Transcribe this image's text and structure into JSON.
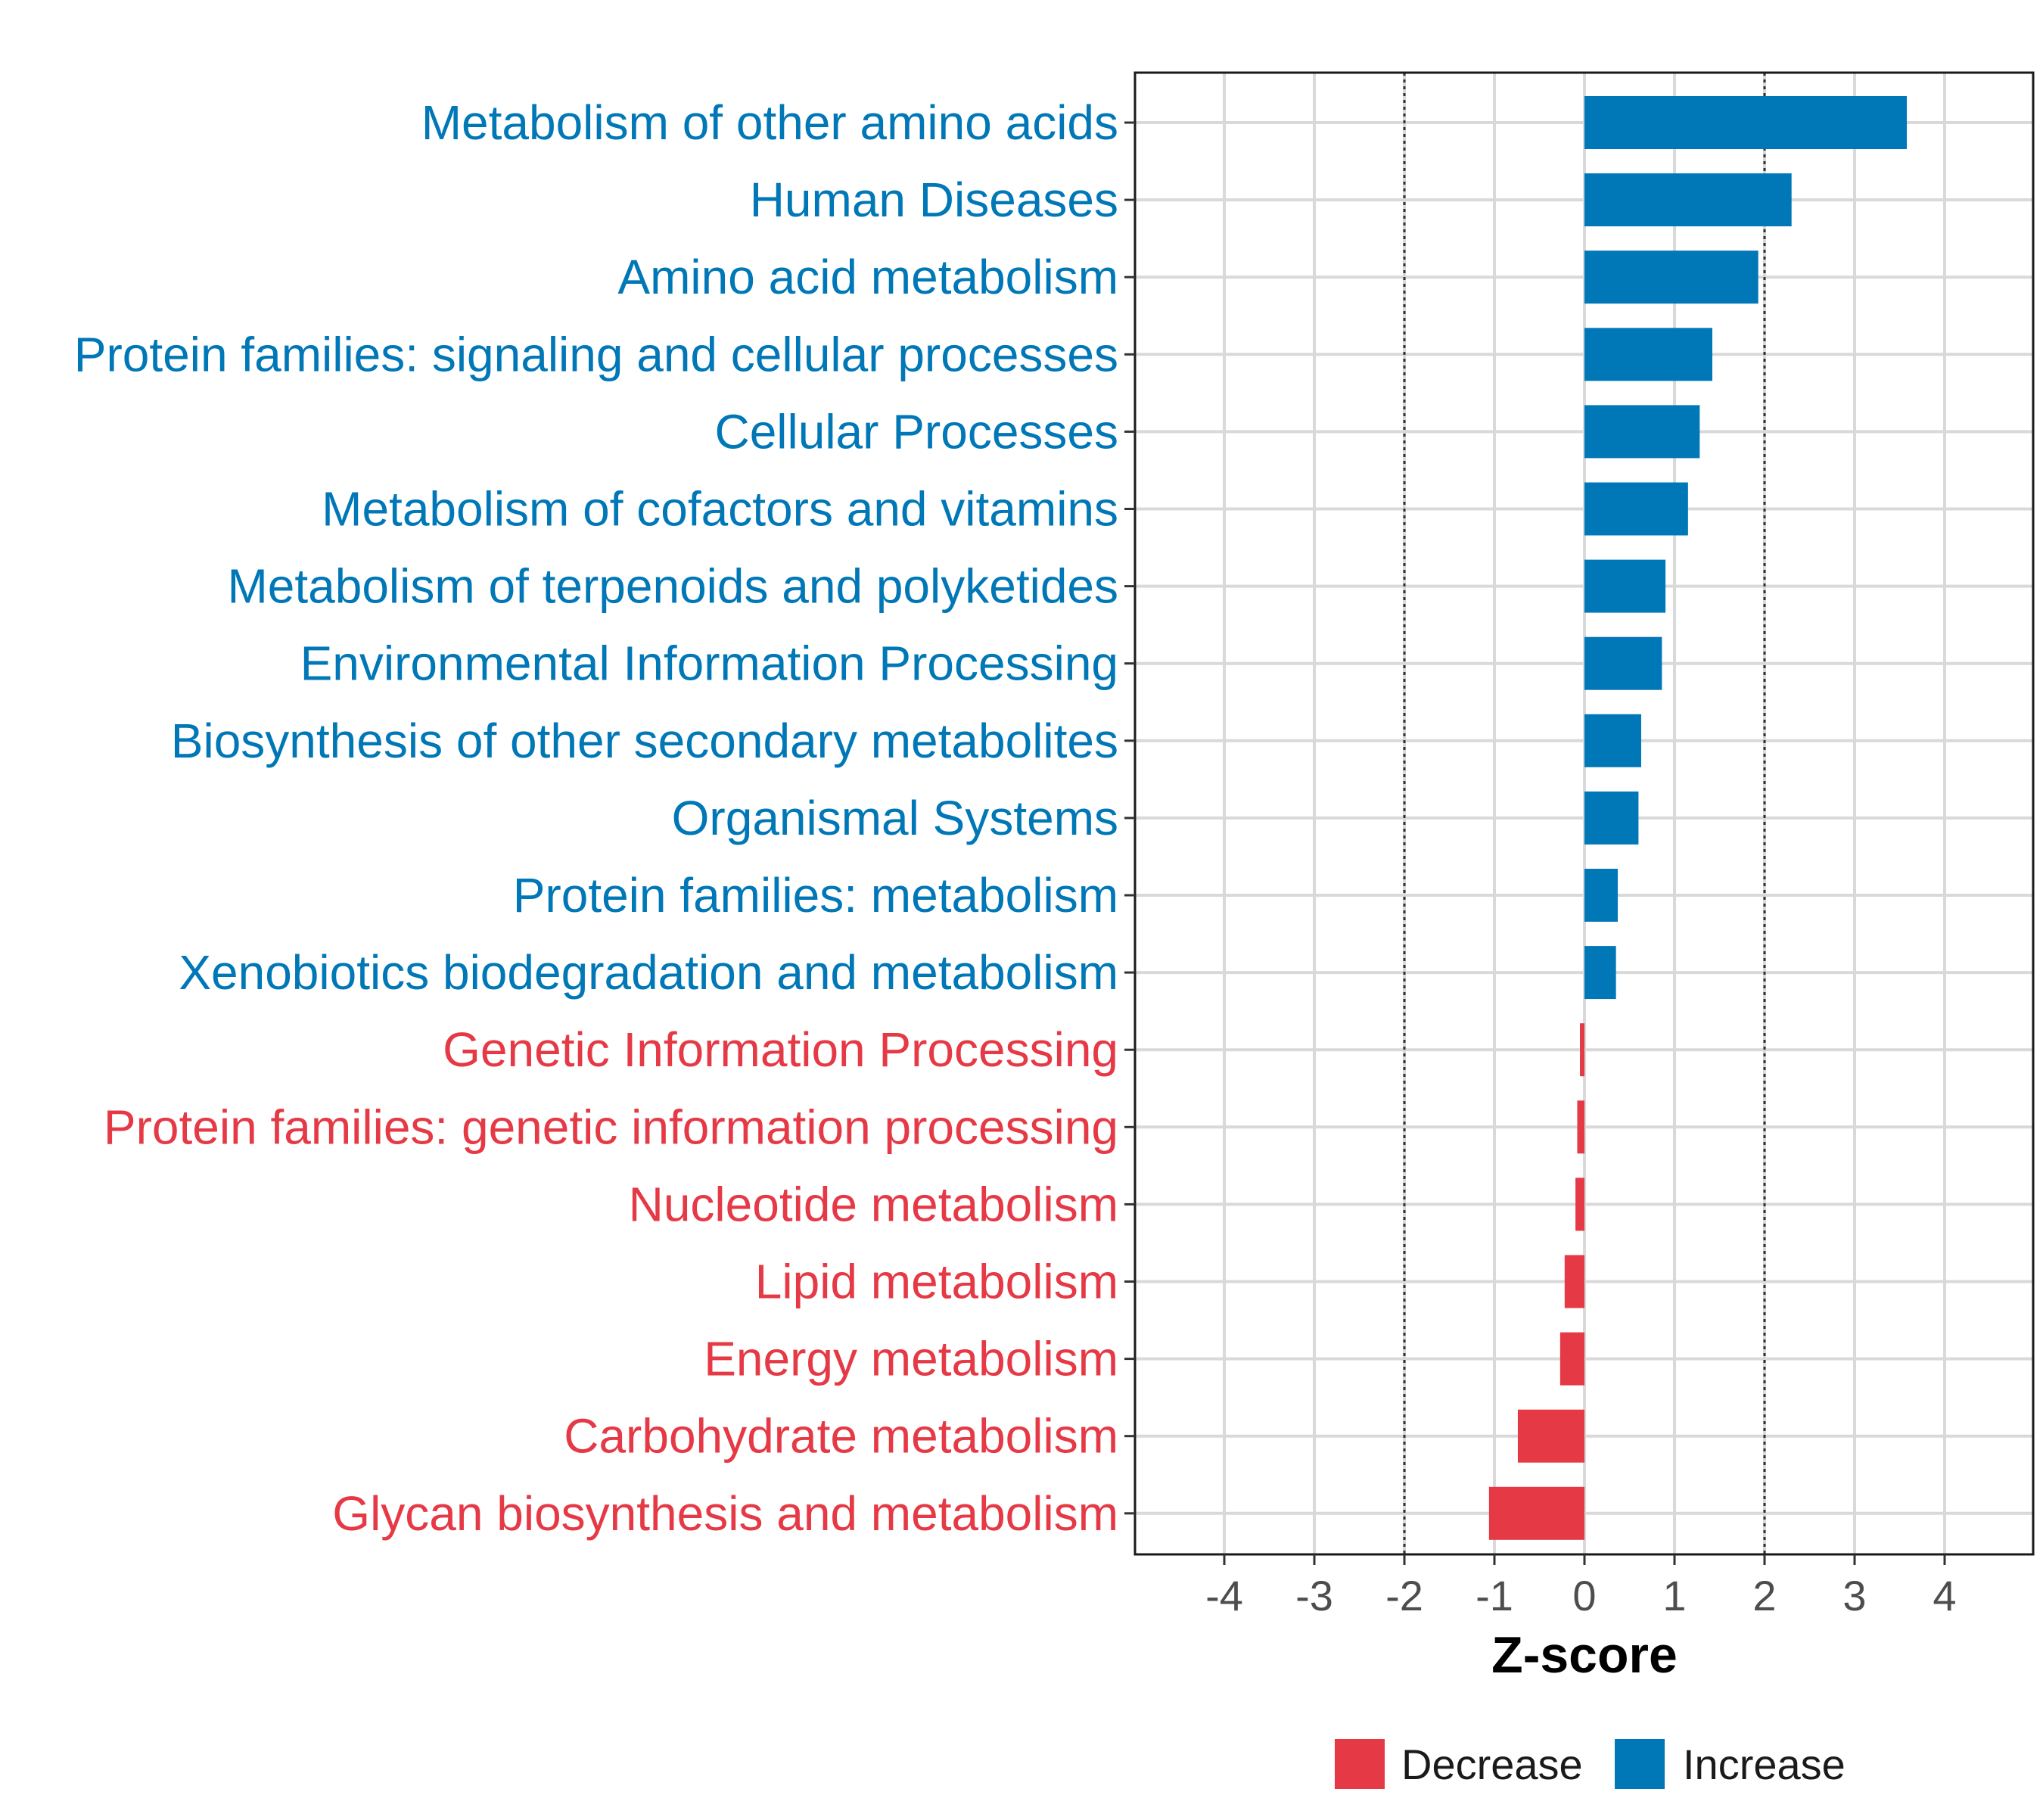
{
  "chart_data": {
    "type": "bar",
    "orientation": "horizontal",
    "categories": [
      "Metabolism of other amino acids",
      "Human Diseases",
      "Amino acid metabolism",
      "Protein families: signaling and cellular processes",
      "Cellular Processes",
      "Metabolism of cofactors and vitamins",
      "Metabolism of terpenoids and polyketides",
      "Environmental Information Processing",
      "Biosynthesis of other secondary metabolites",
      "Organismal Systems",
      "Protein families: metabolism",
      "Xenobiotics biodegradation and metabolism",
      "Genetic Information Processing",
      "Protein families: genetic information processing",
      "Nucleotide metabolism",
      "Lipid metabolism",
      "Energy metabolism",
      "Carbohydrate metabolism",
      "Glycan biosynthesis and metabolism"
    ],
    "values": [
      3.58,
      2.3,
      1.93,
      1.42,
      1.28,
      1.15,
      0.9,
      0.86,
      0.63,
      0.6,
      0.37,
      0.35,
      -0.05,
      -0.08,
      -0.1,
      -0.22,
      -0.27,
      -0.74,
      -1.06
    ],
    "groups": [
      "Increase",
      "Increase",
      "Increase",
      "Increase",
      "Increase",
      "Increase",
      "Increase",
      "Increase",
      "Increase",
      "Increase",
      "Increase",
      "Increase",
      "Decrease",
      "Decrease",
      "Decrease",
      "Decrease",
      "Decrease",
      "Decrease",
      "Decrease"
    ],
    "xlabel": "Z-score",
    "ylabel": "",
    "xlim": [
      -5,
      5
    ],
    "xticks": [
      -4,
      -3,
      -2,
      -1,
      0,
      1,
      2,
      3,
      4
    ],
    "xtick_labels": [
      "-4",
      "-3",
      "-2",
      "-1",
      "0",
      "1",
      "2",
      "3",
      "4"
    ],
    "reference_lines": [
      -2,
      2
    ],
    "grid": true,
    "legend": {
      "position": "bottom",
      "entries": [
        {
          "name": "Decrease",
          "color": "#e63946"
        },
        {
          "name": "Increase",
          "color": "#0077b6"
        }
      ]
    },
    "colors": {
      "Increase": "#0077b6",
      "Decrease": "#e63946"
    }
  }
}
